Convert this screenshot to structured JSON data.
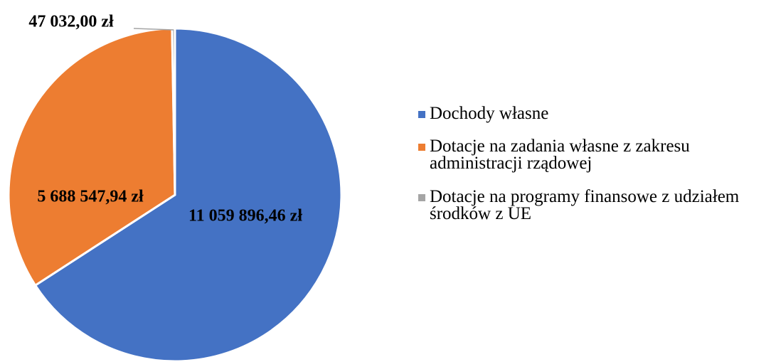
{
  "chart_data": {
    "type": "pie",
    "categories": [
      "Dochody własne",
      "Dotacje na zadania własne z zakresu administracji rządowej",
      "Dotacje na programy finansowe z udziałem środków z UE"
    ],
    "values": [
      11059896.46,
      5688547.94,
      47032.0
    ],
    "value_labels": [
      "11 059 896,46 zł",
      "5 688 547,94 zł",
      "47 032,00 zł"
    ],
    "colors": [
      "#4472c4",
      "#ed7d31",
      "#a5a5a5"
    ],
    "legend": "right"
  }
}
